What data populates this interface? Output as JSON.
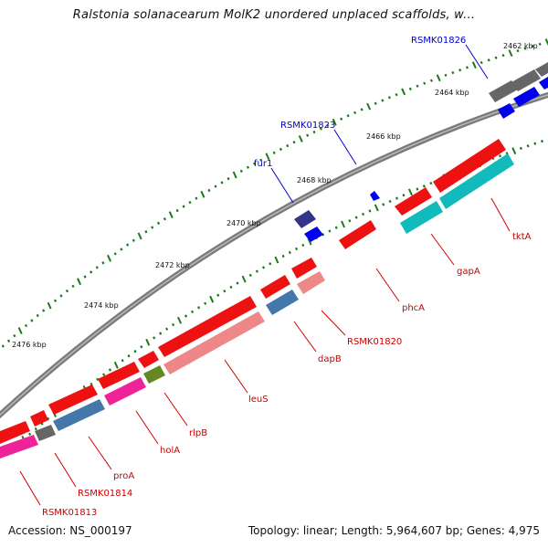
{
  "title": "Ralstonia solanacearum MolK2 unordered unplaced scaffolds, w...",
  "footer": {
    "accession": "Accession: NS_000197",
    "topology": "Topology: linear; Length: 5,964,607 bp; Genes: 4,975"
  },
  "colors": {
    "backbone": "#8a8a8a",
    "tick": "#1a7a1a",
    "red_gene": "#ee1111",
    "pink_gene": "#ee8888",
    "magenta_gene": "#ee2299",
    "cyan_gene": "#11bbbb",
    "steel_gene": "#4477aa",
    "olive_gene": "#668822",
    "gray_gene": "#666666",
    "blue_feature": "#0000ee",
    "navy_feature": "#333388",
    "red_label": "#cc0000",
    "blue_label": "#0000cc"
  },
  "kbp_labels": [
    "2462 kbp",
    "2464 kbp",
    "2466 kbp",
    "2468 kbp",
    "2470 kbp",
    "2472 kbp",
    "2474 kbp",
    "2476 kbp"
  ],
  "gene_labels": [
    {
      "text": "tktA",
      "color": "red"
    },
    {
      "text": "gapA",
      "color": "red"
    },
    {
      "text": "phcA",
      "color": "red"
    },
    {
      "text": "RSMK01820",
      "color": "red"
    },
    {
      "text": "dapB",
      "color": "red"
    },
    {
      "text": "leuS",
      "color": "red"
    },
    {
      "text": "rlpB",
      "color": "red"
    },
    {
      "text": "holA",
      "color": "red"
    },
    {
      "text": "proA",
      "color": "red"
    },
    {
      "text": "RSMK01814",
      "color": "red"
    },
    {
      "text": "RSMK01813",
      "color": "red"
    },
    {
      "text": "RSMK01826",
      "color": "blue"
    },
    {
      "text": "RSMK01823",
      "color": "blue"
    },
    {
      "text": "fur1",
      "color": "blue"
    }
  ]
}
